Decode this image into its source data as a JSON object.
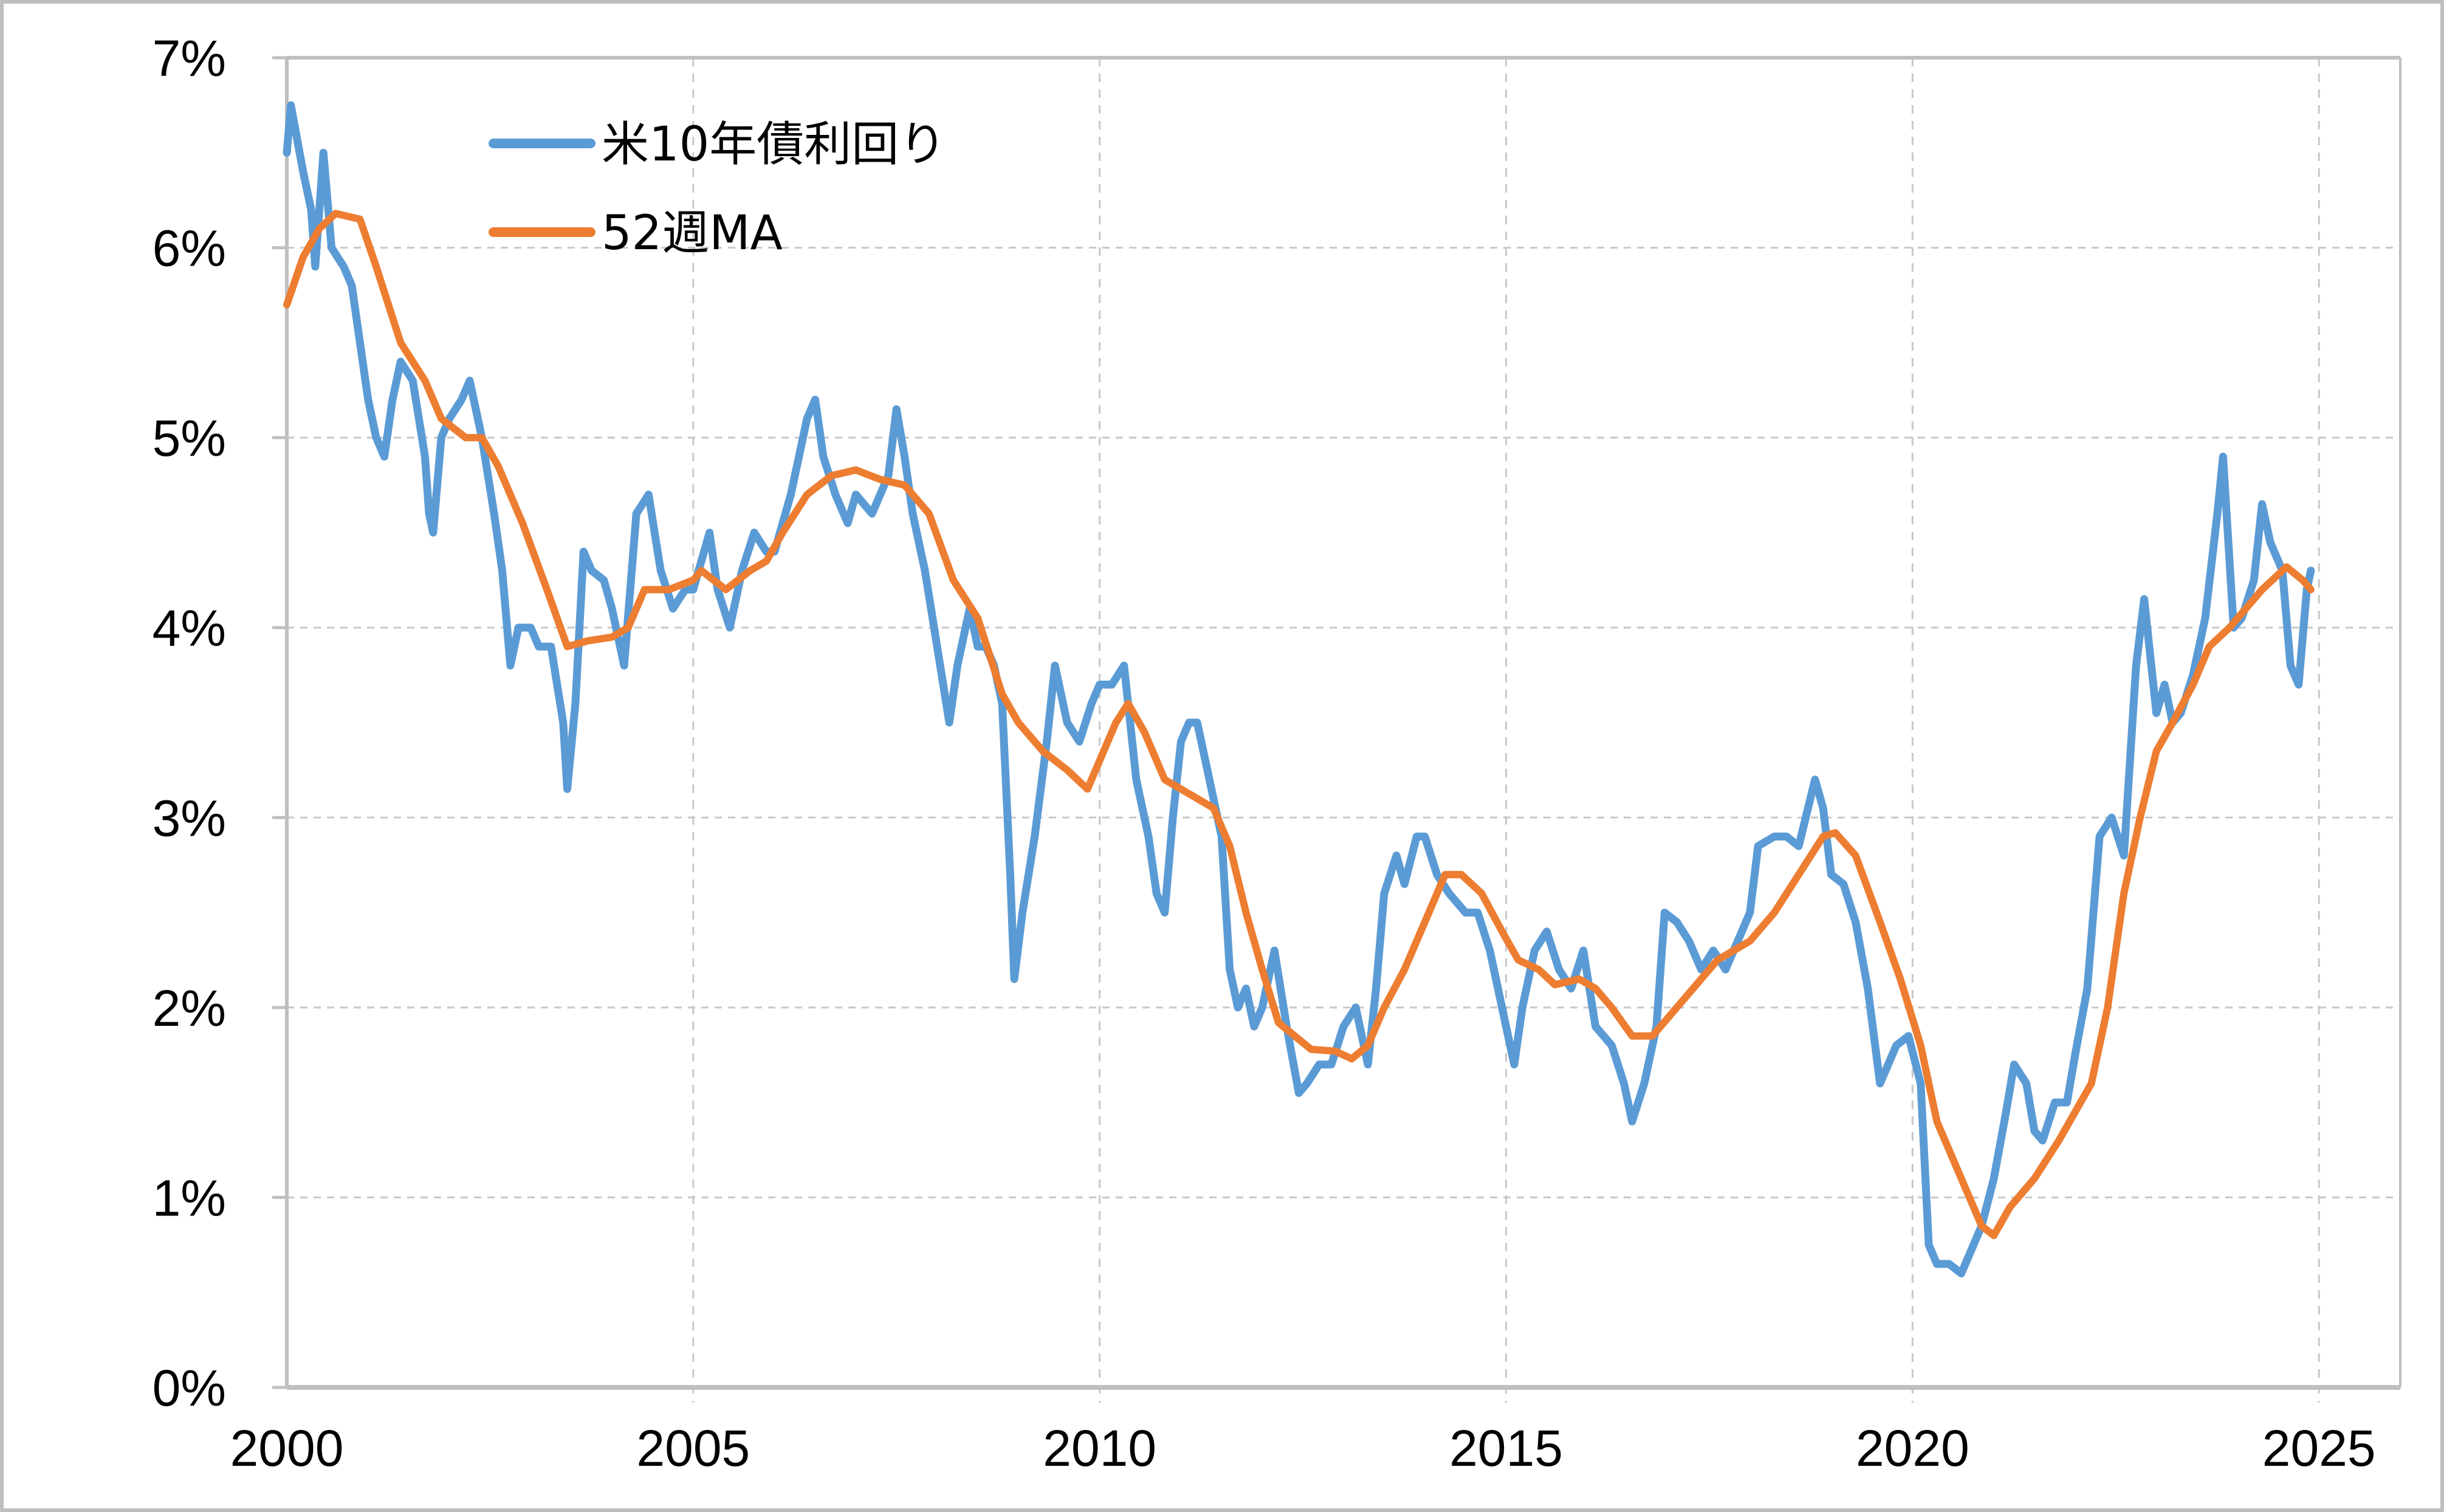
{
  "chart_data": {
    "type": "line",
    "title": "",
    "xlabel": "",
    "ylabel": "",
    "xlim": [
      2000,
      2026
    ],
    "ylim": [
      0,
      7
    ],
    "x_ticks": [
      "2000",
      "2005",
      "2010",
      "2015",
      "2020",
      "2025"
    ],
    "y_ticks": [
      "0%",
      "1%",
      "2%",
      "3%",
      "4%",
      "5%",
      "6%",
      "7%"
    ],
    "grid": true,
    "legend": "top-left",
    "colors": {
      "yield": "#5b9bd5",
      "ma": "#ed7d31",
      "axis": "#bfbfbf",
      "grid": "#c8c8c8"
    },
    "series": [
      {
        "name": "米10年債利回り",
        "x": [
          2000.0,
          2000.05,
          2000.2,
          2000.3,
          2000.35,
          2000.45,
          2000.55,
          2000.7,
          2000.8,
          2001.0,
          2001.1,
          2001.2,
          2001.3,
          2001.4,
          2001.55,
          2001.7,
          2001.75,
          2001.8,
          2001.9,
          2002.0,
          2002.15,
          2002.25,
          2002.4,
          2002.55,
          2002.65,
          2002.75,
          2002.85,
          2003.0,
          2003.1,
          2003.25,
          2003.4,
          2003.45,
          2003.55,
          2003.65,
          2003.75,
          2003.9,
          2004.0,
          2004.15,
          2004.3,
          2004.45,
          2004.6,
          2004.75,
          2004.9,
          2005.0,
          2005.2,
          2005.3,
          2005.45,
          2005.6,
          2005.75,
          2005.9,
          2006.0,
          2006.2,
          2006.4,
          2006.5,
          2006.6,
          2006.75,
          2006.9,
          2007.0,
          2007.2,
          2007.4,
          2007.5,
          2007.6,
          2007.7,
          2007.85,
          2008.0,
          2008.15,
          2008.25,
          2008.4,
          2008.5,
          2008.6,
          2008.7,
          2008.8,
          2008.9,
          2008.95,
          2009.05,
          2009.2,
          2009.35,
          2009.45,
          2009.6,
          2009.75,
          2009.9,
          2010.0,
          2010.15,
          2010.3,
          2010.45,
          2010.6,
          2010.7,
          2010.8,
          2010.9,
          2011.0,
          2011.1,
          2011.2,
          2011.35,
          2011.5,
          2011.6,
          2011.7,
          2011.8,
          2011.9,
          2012.0,
          2012.15,
          2012.3,
          2012.45,
          2012.55,
          2012.7,
          2012.85,
          2013.0,
          2013.15,
          2013.3,
          2013.4,
          2013.5,
          2013.65,
          2013.75,
          2013.9,
          2014.0,
          2014.15,
          2014.3,
          2014.5,
          2014.65,
          2014.8,
          2015.0,
          2015.1,
          2015.2,
          2015.35,
          2015.5,
          2015.65,
          2015.8,
          2015.95,
          2016.1,
          2016.3,
          2016.45,
          2016.55,
          2016.7,
          2016.85,
          2016.95,
          2017.1,
          2017.25,
          2017.4,
          2017.55,
          2017.7,
          2017.85,
          2018.0,
          2018.1,
          2018.3,
          2018.45,
          2018.6,
          2018.8,
          2018.9,
          2019.0,
          2019.15,
          2019.3,
          2019.45,
          2019.6,
          2019.7,
          2019.8,
          2019.95,
          2020.1,
          2020.2,
          2020.3,
          2020.45,
          2020.6,
          2020.7,
          2020.85,
          2021.0,
          2021.15,
          2021.25,
          2021.4,
          2021.5,
          2021.6,
          2021.75,
          2021.9,
          2022.0,
          2022.15,
          2022.3,
          2022.45,
          2022.6,
          2022.75,
          2022.85,
          2023.0,
          2023.1,
          2023.2,
          2023.3,
          2023.45,
          2023.6,
          2023.75,
          2023.82,
          2023.95,
          2024.05,
          2024.2,
          2024.3,
          2024.4,
          2024.55,
          2024.65,
          2024.75,
          2024.85,
          2024.9
        ],
        "values": [
          6.5,
          6.75,
          6.4,
          6.2,
          5.9,
          6.5,
          6.0,
          5.9,
          5.8,
          5.2,
          5.0,
          4.9,
          5.2,
          5.4,
          5.3,
          4.9,
          4.6,
          4.5,
          5.0,
          5.1,
          5.2,
          5.3,
          5.0,
          4.6,
          4.3,
          3.8,
          4.0,
          4.0,
          3.9,
          3.9,
          3.5,
          3.15,
          3.6,
          4.4,
          4.3,
          4.25,
          4.1,
          3.8,
          4.6,
          4.7,
          4.3,
          4.1,
          4.2,
          4.2,
          4.5,
          4.2,
          4.0,
          4.3,
          4.5,
          4.4,
          4.4,
          4.7,
          5.1,
          5.2,
          4.9,
          4.7,
          4.55,
          4.7,
          4.6,
          4.8,
          5.15,
          4.9,
          4.6,
          4.3,
          3.9,
          3.5,
          3.8,
          4.1,
          3.9,
          3.9,
          3.8,
          3.6,
          2.7,
          2.15,
          2.5,
          2.9,
          3.4,
          3.8,
          3.5,
          3.4,
          3.6,
          3.7,
          3.7,
          3.8,
          3.2,
          2.9,
          2.6,
          2.5,
          3.0,
          3.4,
          3.5,
          3.5,
          3.2,
          2.9,
          2.2,
          2.0,
          2.1,
          1.9,
          2.0,
          2.3,
          1.9,
          1.55,
          1.6,
          1.7,
          1.7,
          1.9,
          2.0,
          1.7,
          2.1,
          2.6,
          2.8,
          2.65,
          2.9,
          2.9,
          2.7,
          2.6,
          2.5,
          2.5,
          2.3,
          1.9,
          1.7,
          2.0,
          2.3,
          2.4,
          2.2,
          2.1,
          2.3,
          1.9,
          1.8,
          1.6,
          1.4,
          1.6,
          1.9,
          2.5,
          2.45,
          2.35,
          2.2,
          2.3,
          2.2,
          2.35,
          2.5,
          2.85,
          2.9,
          2.9,
          2.85,
          3.2,
          3.05,
          2.7,
          2.65,
          2.45,
          2.1,
          1.6,
          1.7,
          1.8,
          1.85,
          1.6,
          0.75,
          0.65,
          0.65,
          0.6,
          0.7,
          0.85,
          1.1,
          1.45,
          1.7,
          1.6,
          1.35,
          1.3,
          1.5,
          1.5,
          1.75,
          2.1,
          2.9,
          3.0,
          2.8,
          3.8,
          4.15,
          3.55,
          3.7,
          3.5,
          3.55,
          3.75,
          4.05,
          4.6,
          4.9,
          4.0,
          4.05,
          4.25,
          4.65,
          4.45,
          4.3,
          3.8,
          3.7,
          4.2,
          4.3
        ]
      },
      {
        "name": "52週MA",
        "x": [
          2000.0,
          2000.2,
          2000.4,
          2000.6,
          2000.9,
          2001.1,
          2001.4,
          2001.7,
          2001.9,
          2002.2,
          2002.4,
          2002.6,
          2002.9,
          2003.2,
          2003.45,
          2003.7,
          2004.0,
          2004.2,
          2004.4,
          2004.7,
          2005.0,
          2005.1,
          2005.4,
          2005.7,
          2005.9,
          2006.1,
          2006.4,
          2006.7,
          2007.0,
          2007.3,
          2007.6,
          2007.9,
          2008.2,
          2008.5,
          2008.8,
          2009.0,
          2009.3,
          2009.6,
          2009.85,
          2010.0,
          2010.2,
          2010.35,
          2010.55,
          2010.8,
          2011.0,
          2011.2,
          2011.4,
          2011.6,
          2011.8,
          2012.0,
          2012.2,
          2012.4,
          2012.6,
          2012.9,
          2013.1,
          2013.3,
          2013.5,
          2013.75,
          2014.0,
          2014.25,
          2014.45,
          2014.7,
          2014.95,
          2015.15,
          2015.4,
          2015.6,
          2015.9,
          2016.1,
          2016.3,
          2016.55,
          2016.8,
          2017.0,
          2017.3,
          2017.6,
          2017.8,
          2018.0,
          2018.3,
          2018.6,
          2018.9,
          2019.05,
          2019.3,
          2019.6,
          2019.85,
          2020.1,
          2020.3,
          2020.6,
          2020.85,
          2021.0,
          2021.2,
          2021.5,
          2021.8,
          2022.0,
          2022.2,
          2022.4,
          2022.6,
          2022.8,
          2023.0,
          2023.2,
          2023.45,
          2023.65,
          2023.9,
          2024.1,
          2024.3,
          2024.6,
          2024.8,
          2024.9
        ],
        "values": [
          5.7,
          5.95,
          6.1,
          6.18,
          6.15,
          5.9,
          5.5,
          5.3,
          5.1,
          5.0,
          5.0,
          4.85,
          4.55,
          4.2,
          3.9,
          3.93,
          3.95,
          4.0,
          4.2,
          4.2,
          4.25,
          4.3,
          4.2,
          4.3,
          4.35,
          4.5,
          4.7,
          4.8,
          4.83,
          4.78,
          4.75,
          4.6,
          4.25,
          4.05,
          3.65,
          3.5,
          3.35,
          3.25,
          3.15,
          3.3,
          3.5,
          3.6,
          3.45,
          3.2,
          3.15,
          3.1,
          3.05,
          2.85,
          2.5,
          2.2,
          1.92,
          1.85,
          1.78,
          1.77,
          1.73,
          1.8,
          2.0,
          2.2,
          2.45,
          2.7,
          2.7,
          2.6,
          2.4,
          2.25,
          2.2,
          2.12,
          2.15,
          2.1,
          2.0,
          1.85,
          1.85,
          1.95,
          2.1,
          2.25,
          2.3,
          2.35,
          2.5,
          2.7,
          2.9,
          2.92,
          2.8,
          2.45,
          2.15,
          1.8,
          1.4,
          1.1,
          0.85,
          0.8,
          0.95,
          1.1,
          1.3,
          1.45,
          1.6,
          2.0,
          2.6,
          3.0,
          3.35,
          3.5,
          3.7,
          3.9,
          4.0,
          4.1,
          4.2,
          4.32,
          4.25,
          4.2
        ]
      }
    ]
  }
}
